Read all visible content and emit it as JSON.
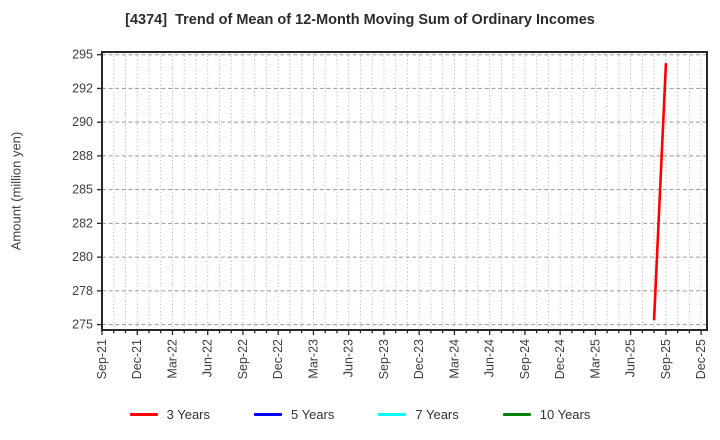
{
  "chart_data": {
    "type": "line",
    "title": "[4374]  Trend of Mean of 12-Month Moving Sum of Ordinary Incomes",
    "xlabel": "",
    "ylabel": "Amount (million yen)",
    "x_unit": "month",
    "x_start": "Sep-21",
    "x_end": "Dec-25",
    "x_tick_labels": [
      "Sep-21",
      "Dec-21",
      "Mar-22",
      "Jun-22",
      "Sep-22",
      "Dec-22",
      "Mar-23",
      "Jun-23",
      "Sep-23",
      "Dec-23",
      "Mar-24",
      "Jun-24",
      "Sep-24",
      "Dec-24",
      "Mar-25",
      "Jun-25",
      "Sep-25",
      "Dec-25"
    ],
    "y_ticks": [
      {
        "label": "295",
        "value": 295
      },
      {
        "label": "292",
        "value": 292.5
      },
      {
        "label": "290",
        "value": 290
      },
      {
        "label": "288",
        "value": 287.5
      },
      {
        "label": "285",
        "value": 285
      },
      {
        "label": "282",
        "value": 282.5
      },
      {
        "label": "280",
        "value": 280
      },
      {
        "label": "278",
        "value": 277.5
      },
      {
        "label": "275",
        "value": 275
      }
    ],
    "ylim": [
      274.6,
      295.2
    ],
    "xlim_months": [
      0,
      51.5
    ],
    "grid": true,
    "legend_position": "bottom",
    "series": [
      {
        "name": "3 Years",
        "color": "#ff0000",
        "points": [
          {
            "x": "Aug-25",
            "y": 275.4
          },
          {
            "x": "Sep-25",
            "y": 294.3
          }
        ]
      },
      {
        "name": "5 Years",
        "color": "#0000ff",
        "points": []
      },
      {
        "name": "7 Years",
        "color": "#00ffff",
        "points": []
      },
      {
        "name": "10 Years",
        "color": "#008000",
        "points": []
      }
    ],
    "colors": {
      "frame": "#262626",
      "grid_h": "#9a9a9a",
      "grid_v": "#b0b0b0",
      "title_text": "#2b2b2b",
      "tick_text": "#404040"
    }
  }
}
